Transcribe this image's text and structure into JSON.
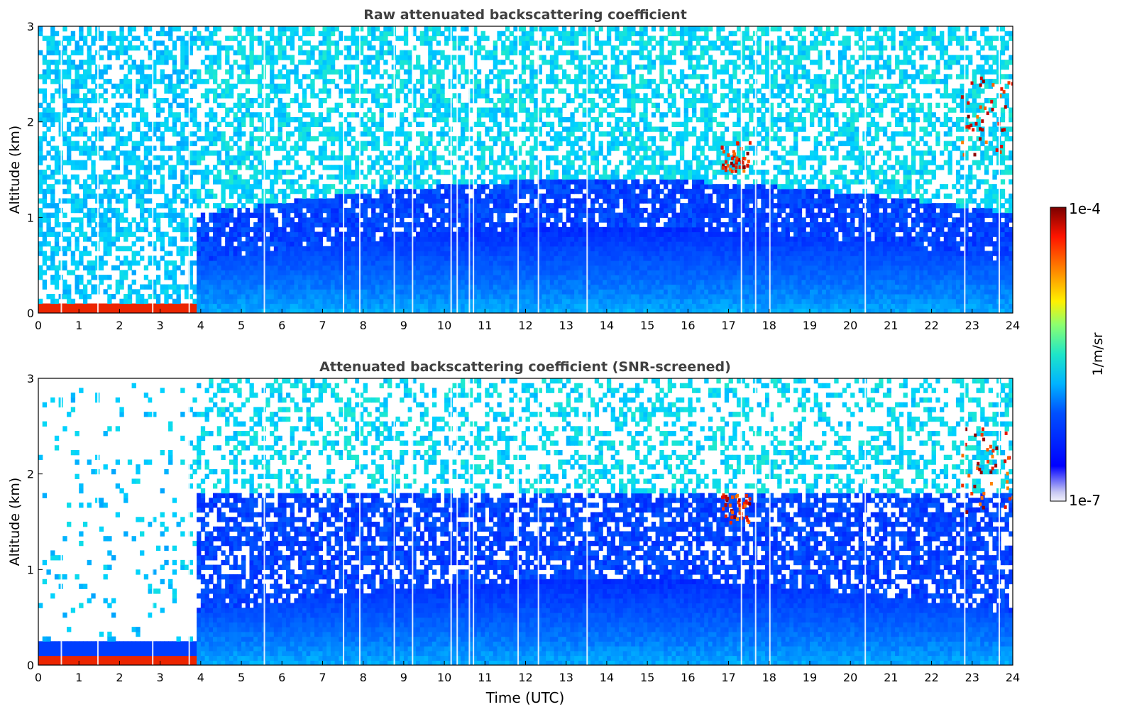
{
  "chart_data": [
    {
      "type": "heatmap",
      "title": "Raw attenuated backscattering coefficient",
      "xlabel": "",
      "ylabel": "Altitude (km)",
      "xlim": [
        0,
        24
      ],
      "ylim": [
        0,
        3
      ],
      "x_ticks": [
        "0",
        "1",
        "2",
        "3",
        "4",
        "5",
        "6",
        "7",
        "8",
        "9",
        "10",
        "11",
        "12",
        "13",
        "14",
        "15",
        "16",
        "17",
        "18",
        "19",
        "20",
        "21",
        "22",
        "23",
        "24"
      ],
      "y_ticks": [
        "0",
        "1",
        "2",
        "3"
      ],
      "features": {
        "surface_layer": {
          "x": [
            0,
            3.9
          ],
          "y": [
            0,
            0.1
          ],
          "level": "high"
        },
        "elevated_layers": [
          {
            "x": [
              16.8,
              17.5
            ],
            "y": [
              1.5,
              1.8
            ],
            "level": "high"
          },
          {
            "x": [
              22.7,
              24
            ],
            "y": [
              1.6,
              2.5
            ],
            "level": "high"
          }
        ],
        "data_gaps_utc": [
          0.55,
          1.45,
          2.8,
          3.7,
          5.55,
          7.5,
          7.9,
          8.75,
          9.2,
          10.15,
          10.3,
          10.6,
          10.7,
          11.8,
          12.3,
          13.5,
          17.3,
          17.65,
          18.0,
          20.35,
          22.8,
          23.65
        ]
      }
    },
    {
      "type": "heatmap",
      "title": "Attenuated backscattering coefficient (SNR-screened)",
      "xlabel": "Time (UTC)",
      "ylabel": "Altitude (km)",
      "xlim": [
        0,
        24
      ],
      "ylim": [
        0,
        3
      ],
      "x_ticks": [
        "0",
        "1",
        "2",
        "3",
        "4",
        "5",
        "6",
        "7",
        "8",
        "9",
        "10",
        "11",
        "12",
        "13",
        "14",
        "15",
        "16",
        "17",
        "18",
        "19",
        "20",
        "21",
        "22",
        "23",
        "24"
      ],
      "y_ticks": [
        "0",
        "1",
        "2",
        "3"
      ],
      "features": {
        "surface_layer": {
          "x": [
            0,
            3.9
          ],
          "y": [
            0,
            0.25
          ],
          "level": "high"
        },
        "boundary_layer_top_km": 1.8,
        "elevated_layers": [
          {
            "x": [
              16.8,
              17.5
            ],
            "y": [
              1.5,
              1.8
            ],
            "level": "high"
          },
          {
            "x": [
              22.7,
              24
            ],
            "y": [
              1.6,
              2.5
            ],
            "level": "high"
          }
        ]
      }
    }
  ],
  "colorbar": {
    "label": "1/m/sr",
    "min_label": "1e-7",
    "max_label": "1e-4",
    "scale": "log",
    "range": [
      1e-07,
      0.0001
    ],
    "colormap": "jet"
  }
}
